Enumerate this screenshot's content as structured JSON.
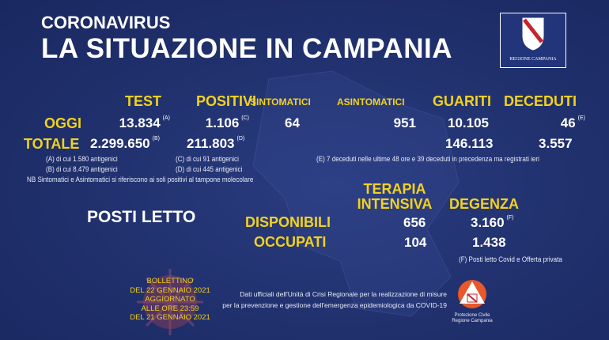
{
  "header": {
    "kicker": "CORONAVIRUS",
    "title": "LA SITUAZIONE IN CAMPANIA",
    "logo_text": "REGIONE CAMPANIA"
  },
  "columns": {
    "test": "TEST",
    "positivi": "POSITIVI",
    "sintomatici": "SINTOMATICI",
    "asintomatici": "ASINTOMATICI",
    "guariti": "GUARITI",
    "deceduti": "DECEDUTI"
  },
  "oggi": {
    "label": "OGGI",
    "test": "13.834",
    "test_note": "(A)",
    "positivi": "1.106",
    "positivi_note": "(C)",
    "sintomatici": "64",
    "asintomatici": "951",
    "guariti": "10.105",
    "deceduti": "46",
    "deceduti_note": "(E)"
  },
  "totale": {
    "label": "TOTALE",
    "test": "2.299.650",
    "test_note": "(B)",
    "positivi": "211.803",
    "positivi_note": "(D)",
    "guariti": "146.113",
    "deceduti": "3.557"
  },
  "notes": {
    "a": "(A) di cui 1.580 antigenici",
    "b": "(B) di cui 8.479 antigenici",
    "c": "(C) di cui 91 antigenici",
    "d": "(D) di cui 445 antigenici",
    "nb": "NB Sintomatici e Asintomatici si riferiscono ai soli positivi al tampone molecolare",
    "e": "(E) 7 deceduti nelle ultime 48 ore e 39 deceduti in precedenza ma registrati ieri",
    "f": "(F) Posti letto Covid e Offerta privata"
  },
  "posti_letto": {
    "title": "POSTI LETTO",
    "col_ti_1": "TERAPIA",
    "col_ti_2": "INTENSIVA",
    "col_deg": "DEGENZA",
    "disponibili_label": "DISPONIBILI",
    "occupati_label": "OCCUPATI",
    "ti_disponibili": "656",
    "deg_disponibili": "3.160",
    "deg_disp_note": "(F)",
    "ti_occupati": "104",
    "deg_occupati": "1.438"
  },
  "bollettino": {
    "l1": "BOLLETTINO",
    "l2": "DEL 22 GENNAIO 2021",
    "l3": "AGGIORNATO",
    "l4": "ALLE ORE 23:59",
    "l5": "DEL 21 GENNAIO 2021"
  },
  "footer": {
    "line1": "Dati ufficiali dell'Unità di Crisi Regionale per la realizzazione di misure",
    "line2": "per la prevenzione e gestione dell'emergenza epidemiologica da COVID-19",
    "pc_1": "Protezione Civile",
    "pc_2": "Regione Campania"
  },
  "colors": {
    "background": "#1f2f6b",
    "accent": "#f3d21c"
  }
}
